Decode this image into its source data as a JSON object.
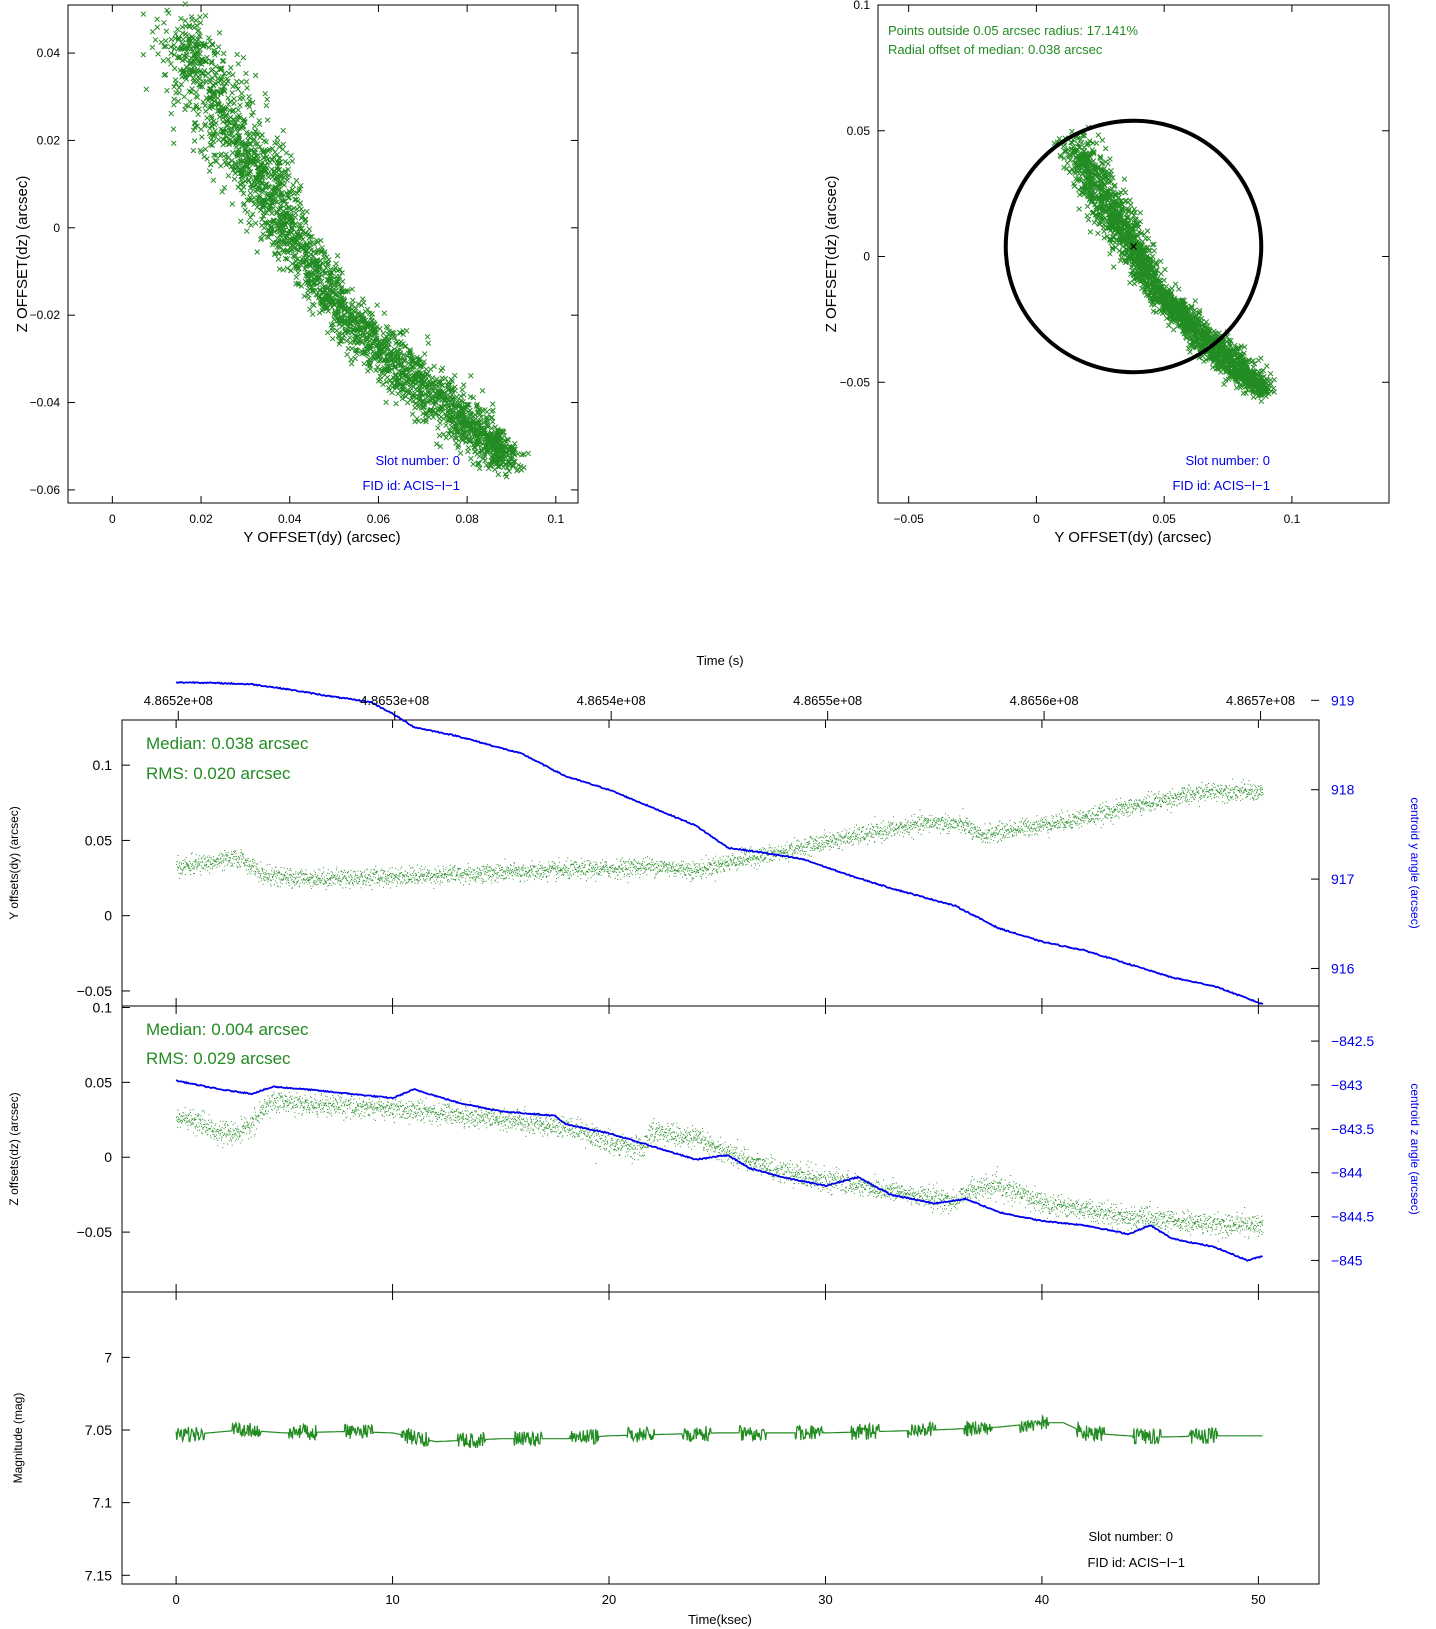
{
  "colors": {
    "green": "#228b22",
    "blue": "#0000ee",
    "axis": "#000000",
    "circle": "#000000"
  },
  "chart_data": [
    {
      "type": "scatter",
      "id": "scatter-left",
      "xlabel": "Y OFFSET(dy) (arcsec)",
      "ylabel": "Z OFFSET(dz) (arcsec)",
      "xlim": [
        -0.01,
        0.105
      ],
      "ylim": [
        -0.063,
        0.051
      ],
      "xticks": [
        0,
        0.02,
        0.04,
        0.06,
        0.08,
        0.1
      ],
      "yticks": [
        -0.06,
        -0.04,
        -0.02,
        0,
        0.02,
        0.04
      ],
      "xtick_labels": [
        "0",
        "0.02",
        "0.04",
        "0.06",
        "0.08",
        "0.1"
      ],
      "ytick_labels": [
        "−0.06",
        "−0.04",
        "−0.02",
        "0",
        "0.02",
        "0.04"
      ],
      "marker": "x",
      "annotations": [
        "Slot number: 0",
        "FID id: ACIS−I−1"
      ],
      "point_cloud": {
        "spine": [
          [
            0.016,
            0.044
          ],
          [
            0.022,
            0.031
          ],
          [
            0.03,
            0.017
          ],
          [
            0.036,
            0.007
          ],
          [
            0.042,
            -0.005
          ],
          [
            0.05,
            -0.017
          ],
          [
            0.058,
            -0.025
          ],
          [
            0.066,
            -0.033
          ],
          [
            0.074,
            -0.04
          ],
          [
            0.082,
            -0.047
          ],
          [
            0.09,
            -0.053
          ]
        ],
        "half_width": [
          0.006,
          0.007,
          0.0065,
          0.005,
          0.004,
          0.004,
          0.0042,
          0.0045,
          0.0048,
          0.0045,
          0.003
        ],
        "n": 2600
      }
    },
    {
      "type": "scatter",
      "id": "scatter-right",
      "xlabel": "Y OFFSET(dy) (arcsec)",
      "ylabel": "Z OFFSET(dz) (arcsec)",
      "xlim": [
        -0.062,
        0.138
      ],
      "ylim": [
        -0.098,
        0.1
      ],
      "xticks": [
        -0.05,
        0,
        0.05,
        0.1
      ],
      "yticks": [
        -0.05,
        0,
        0.05,
        0.1
      ],
      "xtick_labels": [
        "−0.05",
        "0",
        "0.05",
        "0.1"
      ],
      "ytick_labels": [
        "−0.05",
        "0",
        "0.05",
        "0.1"
      ],
      "marker": "x",
      "circle": {
        "center": [
          0.038,
          0.004
        ],
        "radius": 0.05
      },
      "median_marker": [
        0.038,
        0.004
      ],
      "annotations_top": [
        "Points outside 0.05 arcsec radius: 17.141%",
        "Radial offset of median: 0.038 arcsec"
      ],
      "annotations": [
        "Slot number: 0",
        "FID id: ACIS−I−1"
      ],
      "point_cloud": {
        "spine": [
          [
            0.016,
            0.044
          ],
          [
            0.022,
            0.031
          ],
          [
            0.03,
            0.017
          ],
          [
            0.036,
            0.007
          ],
          [
            0.042,
            -0.005
          ],
          [
            0.05,
            -0.017
          ],
          [
            0.058,
            -0.025
          ],
          [
            0.066,
            -0.033
          ],
          [
            0.074,
            -0.04
          ],
          [
            0.082,
            -0.047
          ],
          [
            0.09,
            -0.053
          ]
        ],
        "half_width": [
          0.006,
          0.007,
          0.0065,
          0.005,
          0.004,
          0.004,
          0.0042,
          0.0045,
          0.0048,
          0.0045,
          0.003
        ],
        "n": 2200
      }
    },
    {
      "type": "line",
      "id": "time-y",
      "top_axis_label": "Time (s)",
      "top_ticks": [
        486520000,
        486530000,
        486540000,
        486550000,
        486560000,
        486570000
      ],
      "top_tick_labels": [
        "4.8652e+08",
        "4.8653e+08",
        "4.8654e+08",
        "4.8655e+08",
        "4.8656e+08",
        "4.8657e+08"
      ],
      "xlim": [
        -2.5,
        52.8
      ],
      "ylabel": "Y offsets(dy) (arcsec)",
      "ylim": [
        -0.06,
        0.13
      ],
      "yticks": [
        -0.05,
        0,
        0.05,
        0.1
      ],
      "ytick_labels": [
        "−0.05",
        "0",
        "0.05",
        "0.1"
      ],
      "y2label": "centroid y angle (arcsec)",
      "y2lim": [
        915.58,
        918.78
      ],
      "y2ticks": [
        916,
        917,
        918,
        919
      ],
      "y2tick_labels": [
        "916",
        "917",
        "918",
        "919"
      ],
      "stats": [
        "Median: 0.038 arcsec",
        "RMS: 0.020 arcsec"
      ],
      "series": [
        {
          "color": "green",
          "style": "dots",
          "x": [
            0,
            1.5,
            3,
            4,
            5,
            8,
            12,
            16,
            20,
            22,
            24,
            26,
            28,
            30,
            33,
            35,
            36.5,
            37,
            39,
            42,
            44,
            46,
            48,
            50
          ],
          "y": [
            0.032,
            0.035,
            0.038,
            0.027,
            0.025,
            0.025,
            0.027,
            0.029,
            0.031,
            0.033,
            0.03,
            0.037,
            0.042,
            0.049,
            0.057,
            0.062,
            0.06,
            0.053,
            0.058,
            0.065,
            0.072,
            0.078,
            0.083,
            0.082
          ],
          "jitter": 0.005
        },
        {
          "color": "blue",
          "style": "line",
          "x": [
            0,
            1,
            3.5,
            5,
            7,
            9,
            10,
            11,
            13,
            16,
            18,
            20,
            22,
            24,
            25.5,
            27,
            29,
            31,
            33,
            36,
            38,
            40,
            42,
            44,
            46,
            48,
            50.2
          ],
          "y": [
            919.2,
            919.2,
            919.18,
            919.13,
            919.05,
            918.98,
            918.85,
            918.7,
            918.6,
            918.4,
            918.15,
            918.0,
            917.8,
            917.6,
            917.35,
            917.3,
            917.22,
            917.05,
            916.9,
            916.7,
            916.45,
            916.3,
            916.2,
            916.05,
            915.9,
            915.8,
            915.6
          ]
        }
      ]
    },
    {
      "type": "line",
      "id": "time-z",
      "xlim": [
        -2.5,
        52.8
      ],
      "ylabel": "Z offsets(dz) (arcsec)",
      "ylim": [
        -0.09,
        0.101
      ],
      "yticks": [
        -0.05,
        0,
        0.05,
        0.1
      ],
      "ytick_labels": [
        "−0.05",
        "0",
        "0.05",
        "0.1"
      ],
      "y2label": "centroid z angle (arcsec)",
      "y2lim": [
        -845.36,
        -842.1
      ],
      "y2ticks": [
        -845,
        -844.5,
        -844,
        -843.5,
        -843,
        -842.5
      ],
      "y2tick_labels": [
        "−845",
        "−844.5",
        "−844",
        "−843.5",
        "−843",
        "−842.5"
      ],
      "stats": [
        "Median: 0.004 arcsec",
        "RMS: 0.029 arcsec"
      ],
      "series": [
        {
          "color": "green",
          "style": "dots",
          "x": [
            0,
            1.5,
            2.5,
            3.2,
            4.5,
            6,
            9,
            12,
            15,
            18,
            20,
            21.5,
            22,
            24,
            26,
            28,
            30,
            32,
            34,
            36,
            36.5,
            38,
            40,
            42,
            44,
            46,
            48,
            50
          ],
          "y": [
            0.027,
            0.02,
            0.015,
            0.018,
            0.038,
            0.035,
            0.033,
            0.03,
            0.025,
            0.02,
            0.01,
            0.005,
            0.018,
            0.012,
            0.0,
            -0.01,
            -0.015,
            -0.02,
            -0.025,
            -0.03,
            -0.022,
            -0.02,
            -0.03,
            -0.035,
            -0.04,
            -0.043,
            -0.045,
            -0.045
          ],
          "jitter": 0.006
        },
        {
          "color": "blue",
          "style": "line",
          "x": [
            0,
            1,
            2,
            3.5,
            4.5,
            6,
            8,
            10,
            11,
            13,
            15,
            17.5,
            18,
            20,
            22,
            24,
            25.5,
            26.5,
            28,
            30,
            31.5,
            33,
            35,
            36.5,
            38,
            40,
            42,
            44,
            45,
            46,
            48,
            49.5,
            50.2
          ],
          "y": [
            -842.95,
            -843.0,
            -843.05,
            -843.1,
            -843.02,
            -843.05,
            -843.1,
            -843.15,
            -843.05,
            -843.2,
            -843.3,
            -843.35,
            -843.45,
            -843.55,
            -843.7,
            -843.85,
            -843.8,
            -843.95,
            -844.05,
            -844.15,
            -844.05,
            -844.25,
            -844.35,
            -844.3,
            -844.45,
            -844.55,
            -844.6,
            -844.7,
            -844.6,
            -844.75,
            -844.85,
            -845.0,
            -844.95
          ]
        }
      ]
    },
    {
      "type": "line",
      "id": "time-mag",
      "xlim": [
        -2.5,
        52.8
      ],
      "xlabel": "Time(ksec)",
      "xticks": [
        0,
        10,
        20,
        30,
        40,
        50
      ],
      "xtick_labels": [
        "0",
        "10",
        "20",
        "30",
        "40",
        "50"
      ],
      "ylabel": "Magnitude (mag)",
      "ylim": [
        7.156,
        6.955
      ],
      "yticks": [
        7,
        7.05,
        7.1,
        7.15
      ],
      "ytick_labels": [
        "7",
        "7.05",
        "7.1",
        "7.15"
      ],
      "annotations": [
        "Slot number: 0",
        "FID id: ACIS−I−1"
      ],
      "series": [
        {
          "color": "green",
          "style": "line",
          "x": [
            0,
            3,
            5,
            8,
            10,
            12,
            15,
            18,
            20,
            25,
            30,
            35,
            38,
            40,
            41,
            42,
            45,
            48,
            50.2
          ],
          "y": [
            7.054,
            7.05,
            7.052,
            7.051,
            7.052,
            7.058,
            7.056,
            7.056,
            7.054,
            7.052,
            7.052,
            7.05,
            7.048,
            7.045,
            7.045,
            7.052,
            7.055,
            7.054,
            7.054
          ],
          "spikes": 7
        }
      ]
    }
  ]
}
